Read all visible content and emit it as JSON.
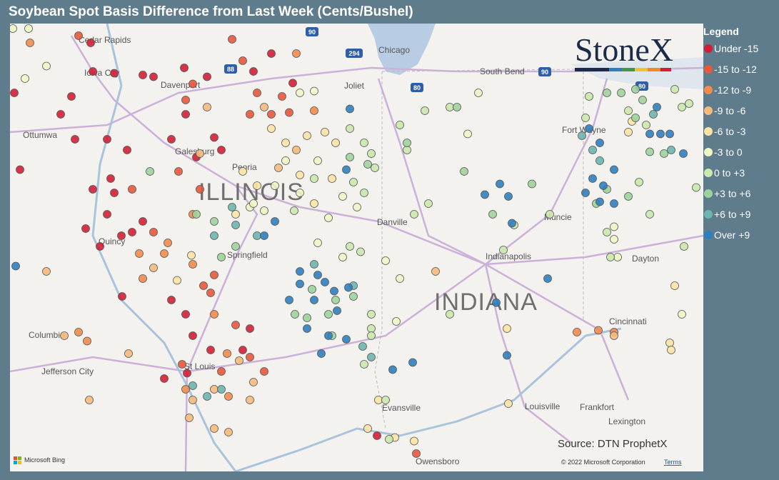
{
  "header": {
    "title": "Soybean Spot Basis Difference from Last Week (Cents/Bushel)"
  },
  "map": {
    "logo": "StoneX",
    "source": "Source: DTN ProphetX",
    "attribution": "Microsoft Bing",
    "copyright": "© 2022 Microsoft Corporation",
    "terms": "Terms",
    "state_labels": [
      "ILLINOIS",
      "INDIANA"
    ],
    "labels": [
      "Cedar Rapids",
      "Iowa City",
      "Davenport",
      "Ottumwa",
      "Galesburg",
      "Peoria",
      "Springfield",
      "Quincy",
      "Columbia",
      "Jefferson City",
      "St Louis",
      "Chicago",
      "Joliet",
      "South Bend",
      "Fort Wayne",
      "Muncie",
      "Danville",
      "Indianapolis",
      "Dayton",
      "Cincinnati",
      "Louisville",
      "Frankfort",
      "Lexington",
      "Evansville",
      "Owensboro"
    ],
    "highway_shields": [
      "90",
      "294",
      "88",
      "80",
      "90",
      "80"
    ]
  },
  "legend": {
    "title": "Legend",
    "items": [
      {
        "name": "Under -15",
        "color": "#d21f36",
        "points": [
          [
            -91.47,
            42.12
          ],
          [
            -91.44,
            41.8
          ],
          [
            -91.14,
            41.78
          ],
          [
            -90.59,
            41.74
          ],
          [
            -90.74,
            41.76
          ],
          [
            -90.16,
            41.84
          ],
          [
            -89.84,
            41.74
          ],
          [
            -89.19,
            41.8
          ],
          [
            -88.94,
            42.0
          ],
          [
            -88.64,
            41.67
          ],
          [
            -92.54,
            41.56
          ],
          [
            -91.74,
            41.52
          ],
          [
            -91.89,
            41.32
          ],
          [
            -91.69,
            41.04
          ],
          [
            -91.24,
            41.04
          ],
          [
            -90.96,
            40.92
          ],
          [
            -91.19,
            40.6
          ],
          [
            -91.14,
            40.44
          ],
          [
            -91.44,
            40.48
          ],
          [
            -90.34,
            41.04
          ],
          [
            -90.14,
            41.32
          ],
          [
            -89.74,
            41.06
          ],
          [
            -89.64,
            40.92
          ],
          [
            -89.99,
            40.84
          ],
          [
            -92.46,
            40.7
          ],
          [
            -91.54,
            40.04
          ],
          [
            -91.24,
            40.2
          ],
          [
            -91.04,
            39.96
          ],
          [
            -90.89,
            40.0
          ],
          [
            -90.74,
            40.12
          ],
          [
            -91.34,
            39.84
          ],
          [
            -90.34,
            39.24
          ],
          [
            -90.14,
            39.08
          ],
          [
            -90.04,
            38.84
          ],
          [
            -89.79,
            38.68
          ],
          [
            -89.24,
            38.92
          ],
          [
            -89.34,
            38.68
          ],
          [
            -90.44,
            38.36
          ],
          [
            -90.12,
            38.42
          ],
          [
            -87.46,
            37.72
          ],
          [
            -91.03,
            39.28
          ]
        ]
      },
      {
        "name": "-15 to -12",
        "color": "#e8583c",
        "points": [
          [
            -91.64,
            42.2
          ],
          [
            -89.49,
            42.16
          ],
          [
            -89.34,
            41.92
          ],
          [
            -90.04,
            41.66
          ],
          [
            -89.14,
            41.56
          ],
          [
            -88.79,
            41.52
          ],
          [
            -89.24,
            41.32
          ],
          [
            -88.94,
            41.32
          ],
          [
            -88.69,
            41.34
          ],
          [
            -90.24,
            40.68
          ],
          [
            -89.94,
            40.48
          ],
          [
            -90.14,
            41.48
          ],
          [
            -90.89,
            40.48
          ],
          [
            -90.59,
            40.0
          ],
          [
            -89.74,
            39.52
          ],
          [
            -89.79,
            39.32
          ],
          [
            -89.44,
            38.96
          ],
          [
            -89.64,
            38.44
          ],
          [
            -89.89,
            39.4
          ],
          [
            -90.19,
            38.52
          ],
          [
            -89.24,
            38.6
          ],
          [
            -89.04,
            38.44
          ],
          [
            -86.91,
            37.52
          ]
        ]
      },
      {
        "name": "-12 to -9",
        "color": "#f28c4e",
        "points": [
          [
            -92.32,
            42.12
          ],
          [
            -88.59,
            42.0
          ],
          [
            -88.34,
            41.36
          ],
          [
            -90.04,
            40.2
          ],
          [
            -90.39,
            39.88
          ],
          [
            -90.04,
            39.64
          ],
          [
            -89.74,
            39.08
          ],
          [
            -89.56,
            38.64
          ],
          [
            -91.64,
            38.88
          ],
          [
            -91.52,
            38.78
          ],
          [
            -90.14,
            38.24
          ],
          [
            -84.66,
            38.88
          ],
          [
            -84.36,
            38.9
          ],
          [
            -84.14,
            38.88
          ],
          [
            -89.54,
            38.16
          ],
          [
            -90.79,
            39.76
          ],
          [
            -90.74,
            39.48
          ],
          [
            -90.44,
            39.76
          ]
        ]
      },
      {
        "name": "-9 to -6",
        "color": "#f7ba7c",
        "points": [
          [
            -92.09,
            39.56
          ],
          [
            -91.84,
            38.84
          ],
          [
            -91.49,
            38.12
          ],
          [
            -90.94,
            38.64
          ],
          [
            -90.59,
            39.6
          ],
          [
            -90.09,
            37.92
          ],
          [
            -89.74,
            37.8
          ],
          [
            -89.54,
            37.76
          ],
          [
            -89.19,
            38.32
          ],
          [
            -89.24,
            38.12
          ],
          [
            -89.84,
            41.4
          ],
          [
            -89.04,
            41.4
          ],
          [
            -89.94,
            40.88
          ],
          [
            -88.84,
            40.72
          ],
          [
            -88.59,
            40.92
          ],
          [
            -86.64,
            39.56
          ],
          [
            -89.39,
            38.56
          ],
          [
            -84.14,
            38.84
          ],
          [
            -89.74,
            38.24
          ],
          [
            -90.04,
            38.12
          ]
        ]
      },
      {
        "name": "-6 to -3",
        "color": "#fde4a6",
        "points": [
          [
            -88.94,
            41.16
          ],
          [
            -88.74,
            41.0
          ],
          [
            -88.44,
            41.08
          ],
          [
            -88.19,
            41.12
          ],
          [
            -89.34,
            40.68
          ],
          [
            -89.14,
            40.52
          ],
          [
            -89.44,
            40.2
          ],
          [
            -88.54,
            40.64
          ],
          [
            -88.04,
            41.0
          ],
          [
            -88.09,
            40.6
          ],
          [
            -88.34,
            40.32
          ],
          [
            -83.94,
            41.12
          ],
          [
            -83.89,
            41.24
          ],
          [
            -83.29,
            39.4
          ],
          [
            -83.36,
            38.76
          ],
          [
            -83.34,
            38.68
          ],
          [
            -85.64,
            38.92
          ],
          [
            -85.62,
            38.08
          ],
          [
            -87.44,
            38.12
          ],
          [
            -87.59,
            37.8
          ],
          [
            -87.21,
            37.7
          ],
          [
            -86.94,
            37.66
          ],
          [
            -90.06,
            39.74
          ],
          [
            -90.26,
            39.46
          ]
        ]
      },
      {
        "name": "-3 to 0",
        "color": "#eef6c4",
        "points": [
          [
            -92.56,
            42.28
          ],
          [
            -92.34,
            42.28
          ],
          [
            -92.09,
            41.86
          ],
          [
            -92.39,
            41.72
          ],
          [
            -88.54,
            41.56
          ],
          [
            -88.34,
            41.58
          ],
          [
            -88.74,
            40.8
          ],
          [
            -88.89,
            40.52
          ],
          [
            -88.54,
            40.44
          ],
          [
            -88.29,
            40.8
          ],
          [
            -87.94,
            40.4
          ],
          [
            -87.74,
            40.28
          ],
          [
            -88.14,
            40.16
          ],
          [
            -89.04,
            40.24
          ],
          [
            -89.24,
            40.28
          ],
          [
            -87.14,
            39.48
          ],
          [
            -87.34,
            39.68
          ],
          [
            -88.29,
            39.88
          ],
          [
            -87.94,
            39.72
          ],
          [
            -87.19,
            39.0
          ],
          [
            -86.04,
            41.56
          ],
          [
            -86.19,
            41.1
          ],
          [
            -84.09,
            39.72
          ],
          [
            -83.19,
            39.08
          ],
          [
            -84.14,
            39.92
          ],
          [
            -84.14,
            40.06
          ],
          [
            -89.19,
            40.32
          ]
        ]
      },
      {
        "name": "0 to +3",
        "color": "#cbe8ad",
        "points": [
          [
            -87.84,
            41.16
          ],
          [
            -87.64,
            41.0
          ],
          [
            -87.54,
            40.88
          ],
          [
            -87.04,
            40.92
          ],
          [
            -87.14,
            41.2
          ],
          [
            -86.79,
            41.36
          ],
          [
            -86.44,
            41.4
          ],
          [
            -86.74,
            40.32
          ],
          [
            -86.94,
            40.2
          ],
          [
            -87.49,
            40.72
          ],
          [
            -87.79,
            40.56
          ],
          [
            -87.64,
            40.44
          ],
          [
            -87.84,
            39.84
          ],
          [
            -87.69,
            39.78
          ],
          [
            -88.62,
            40.24
          ],
          [
            -88.34,
            40.6
          ],
          [
            -87.64,
            38.52
          ],
          [
            -87.54,
            39.08
          ],
          [
            -87.54,
            38.92
          ],
          [
            -87.54,
            38.84
          ],
          [
            -87.34,
            38.12
          ],
          [
            -85.04,
            40.2
          ],
          [
            -85.54,
            40.08
          ],
          [
            -85.69,
            39.8
          ],
          [
            -84.49,
            41.52
          ],
          [
            -84.54,
            41.28
          ],
          [
            -84.24,
            40.0
          ],
          [
            -83.79,
            40.56
          ],
          [
            -83.64,
            40.2
          ],
          [
            -83.16,
            39.84
          ],
          [
            -82.99,
            40.5
          ],
          [
            -84.19,
            39.72
          ],
          [
            -83.69,
            41.2
          ],
          [
            -83.94,
            41.36
          ],
          [
            -83.29,
            41.6
          ],
          [
            -83.19,
            41.4
          ],
          [
            -83.09,
            41.44
          ],
          [
            -86.44,
            39.08
          ],
          [
            -87.29,
            37.68
          ]
        ]
      },
      {
        "name": "+3 to +6",
        "color": "#9ed39c",
        "points": [
          [
            -90.64,
            40.68
          ],
          [
            -89.99,
            40.2
          ],
          [
            -89.74,
            40.12
          ],
          [
            -89.44,
            39.84
          ],
          [
            -89.64,
            39.72
          ],
          [
            -88.44,
            39.04
          ],
          [
            -88.61,
            39.08
          ],
          [
            -88.04,
            39.24
          ],
          [
            -88.14,
            39.08
          ],
          [
            -86.24,
            40.68
          ],
          [
            -85.84,
            40.2
          ],
          [
            -85.29,
            40.54
          ],
          [
            -84.24,
            40.48
          ],
          [
            -83.94,
            40.4
          ],
          [
            -83.44,
            40.88
          ],
          [
            -83.64,
            40.9
          ],
          [
            -84.39,
            40.32
          ],
          [
            -84.24,
            41.56
          ],
          [
            -84.04,
            41.56
          ],
          [
            -83.84,
            41.6
          ],
          [
            -83.74,
            41.48
          ],
          [
            -83.84,
            41.28
          ],
          [
            -86.34,
            41.4
          ],
          [
            -87.04,
            41.0
          ],
          [
            -87.59,
            40.76
          ],
          [
            -87.84,
            40.84
          ],
          [
            -88.37,
            39.36
          ],
          [
            -88.09,
            38.84
          ],
          [
            -87.79,
            39.28
          ]
        ]
      },
      {
        "name": "+6 to +9",
        "color": "#6db6ae",
        "points": [
          [
            -89.49,
            40.28
          ],
          [
            -89.14,
            39.96
          ],
          [
            -89.74,
            39.96
          ],
          [
            -89.44,
            40.08
          ],
          [
            -88.34,
            39.64
          ],
          [
            -87.79,
            39.4
          ],
          [
            -87.54,
            38.6
          ],
          [
            -87.66,
            38.72
          ],
          [
            -84.59,
            41.08
          ],
          [
            -84.44,
            40.92
          ],
          [
            -84.34,
            40.8
          ],
          [
            -90.04,
            38.28
          ],
          [
            -89.84,
            38.16
          ],
          [
            -89.64,
            38.24
          ],
          [
            -83.59,
            41.32
          ],
          [
            -83.34,
            40.92
          ]
        ]
      },
      {
        "name": "Over +9",
        "color": "#2f7fbf",
        "points": [
          [
            -92.52,
            39.62
          ],
          [
            -87.84,
            41.38
          ],
          [
            -87.89,
            40.7
          ],
          [
            -88.89,
            40.12
          ],
          [
            -89.04,
            39.96
          ],
          [
            -88.54,
            39.56
          ],
          [
            -88.29,
            39.52
          ],
          [
            -88.19,
            39.44
          ],
          [
            -88.54,
            39.42
          ],
          [
            -88.69,
            39.24
          ],
          [
            -88.34,
            39.24
          ],
          [
            -88.06,
            39.34
          ],
          [
            -87.86,
            39.38
          ],
          [
            -88.02,
            39.12
          ],
          [
            -88.14,
            38.84
          ],
          [
            -87.89,
            38.8
          ],
          [
            -88.24,
            38.64
          ],
          [
            -88.44,
            38.92
          ],
          [
            -87.24,
            38.46
          ],
          [
            -86.96,
            38.54
          ],
          [
            -85.95,
            40.42
          ],
          [
            -85.74,
            40.54
          ],
          [
            -85.62,
            40.4
          ],
          [
            -85.57,
            40.1
          ],
          [
            -85.07,
            39.48
          ],
          [
            -85.79,
            39.21
          ],
          [
            -85.64,
            38.62
          ],
          [
            -84.49,
            41.16
          ],
          [
            -84.34,
            41.0
          ],
          [
            -84.14,
            40.7
          ],
          [
            -84.54,
            40.44
          ],
          [
            -84.34,
            40.34
          ],
          [
            -84.14,
            40.32
          ],
          [
            -84.29,
            40.52
          ],
          [
            -84.44,
            40.6
          ],
          [
            -83.64,
            41.1
          ],
          [
            -83.49,
            41.1
          ],
          [
            -83.54,
            41.4
          ],
          [
            -83.36,
            41.1
          ],
          [
            -83.17,
            40.88
          ]
        ]
      }
    ]
  }
}
